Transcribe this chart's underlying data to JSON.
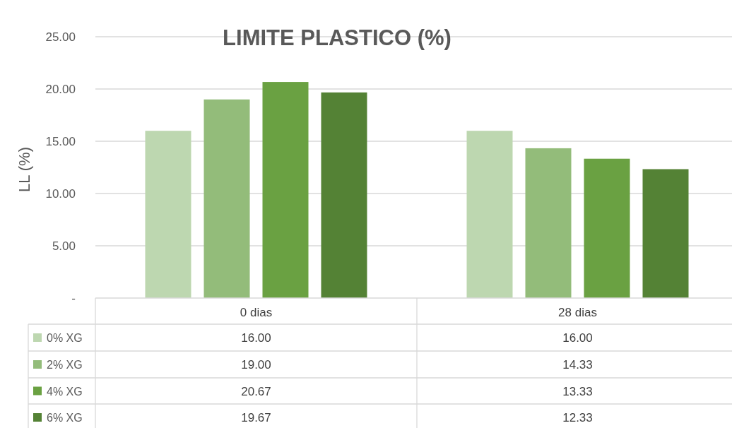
{
  "chart_data": {
    "type": "bar",
    "title": "LIMITE PLASTICO (%)",
    "ylabel": "LL (%)",
    "categories": [
      "0 dias",
      "28 dias"
    ],
    "series": [
      {
        "name": "0% XG",
        "color": "#bdd7b0",
        "values": [
          16.0,
          16.0
        ],
        "value_labels": [
          "16.00",
          "16.00"
        ]
      },
      {
        "name": "2% XG",
        "color": "#93bc7a",
        "values": [
          19.0,
          14.33
        ],
        "value_labels": [
          "19.00",
          "14.33"
        ]
      },
      {
        "name": "4% XG",
        "color": "#6aa142",
        "values": [
          20.67,
          13.33
        ],
        "value_labels": [
          "20.67",
          "13.33"
        ]
      },
      {
        "name": "6% XG",
        "color": "#548235",
        "values": [
          19.67,
          12.33
        ],
        "value_labels": [
          "19.67",
          "12.33"
        ]
      }
    ],
    "ylim": [
      0,
      25
    ],
    "yticks": [
      {
        "value": 0,
        "label": "-"
      },
      {
        "value": 5,
        "label": "5.00"
      },
      {
        "value": 10,
        "label": "10.00"
      },
      {
        "value": 15,
        "label": "15.00"
      },
      {
        "value": 20,
        "label": "20.00"
      },
      {
        "value": 25,
        "label": "25.00"
      }
    ],
    "grid": "y",
    "legend": "bottom"
  }
}
